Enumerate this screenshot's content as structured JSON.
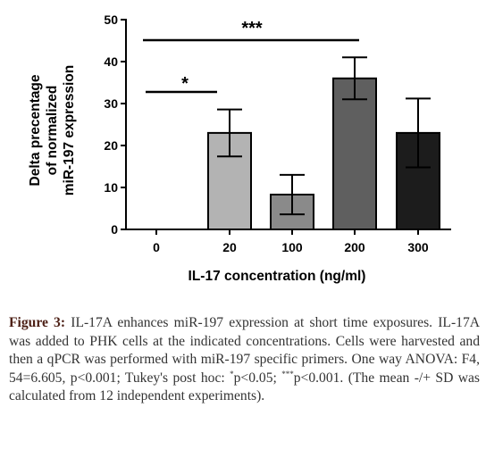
{
  "chart_data": {
    "type": "bar",
    "categories": [
      "0",
      "20",
      "100",
      "200",
      "300"
    ],
    "values": [
      0,
      23,
      8.3,
      36,
      23
    ],
    "errors": [
      0,
      5.6,
      4.7,
      5.0,
      8.2
    ],
    "ylabel_lines": [
      "Delta precentage",
      "of normalized",
      "miR-197 expression"
    ],
    "xlabel": "IL-17 concentration (ng/ml)",
    "ylim": [
      0,
      50
    ],
    "yticks": [
      "0",
      "10",
      "20",
      "30",
      "40",
      "50"
    ],
    "significance": [
      {
        "from": "0",
        "to": "20",
        "label": "*"
      },
      {
        "from": "0",
        "to": "200",
        "label": "***"
      }
    ],
    "bar_colors": [
      "#bdbdbd",
      "#b3b3b3",
      "#8a8a8a",
      "#5f5f5f",
      "#1c1c1c"
    ],
    "grid": false
  },
  "caption": {
    "label": "Figure 3:",
    "text": "IL-17A enhances miR-197 expression at short time exposures. IL-17A was added to PHK cells at the indicated concentrations. Cells were harvested and then a qPCR was performed with miR-197 specific primers. One way ANOVA: F4, 54=6.605, p<0.001; Tukey's post hoc: ",
    "sig1_mark": "*",
    "sig1_text": "p<0.05; ",
    "sig2_mark": "***",
    "sig2_text": "p<0.001. (The mean -/+ SD was calculated from 12 independent experiments)."
  }
}
